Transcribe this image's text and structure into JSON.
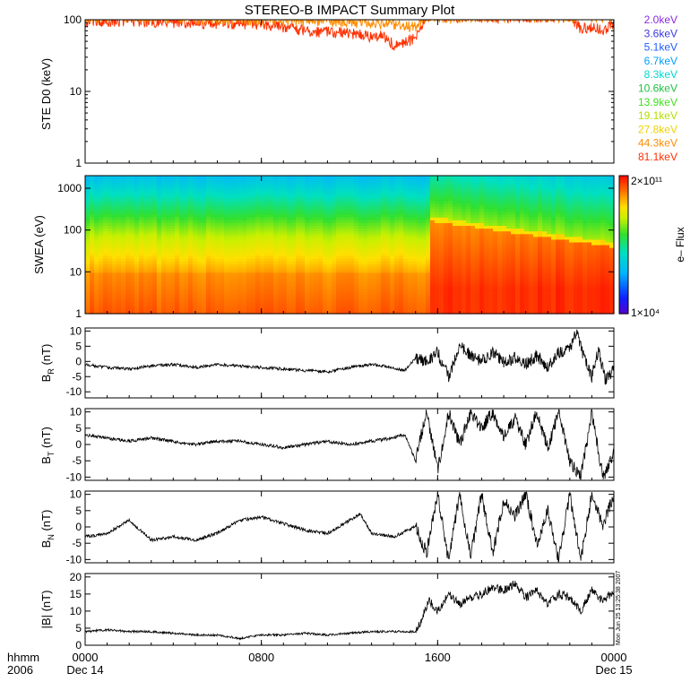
{
  "title": "STEREO-B IMPACT Summary Plot",
  "footer": {
    "label_line1": "hhmm",
    "label_line2": "2006",
    "x_ticks": [
      {
        "t": 0,
        "line1": "0000",
        "line2": "Dec 14"
      },
      {
        "t": 8,
        "line1": "0800",
        "line2": ""
      },
      {
        "t": 16,
        "line1": "1600",
        "line2": ""
      },
      {
        "t": 24,
        "line1": "0000",
        "line2": "Dec 15"
      }
    ],
    "timestamp": "Mon Jun 25 13:25:38 2007"
  },
  "colors": {
    "axis": "#000000",
    "legend": [
      "#8a2be2",
      "#3a3ae0",
      "#1f5cff",
      "#00a0ff",
      "#00d8d0",
      "#20c040",
      "#40e020",
      "#b0e000",
      "#f0d000",
      "#ff8c00",
      "#ff3000"
    ]
  },
  "chart_data": [
    {
      "id": "ste",
      "type": "line",
      "ylabel": "STE D0 (keV)",
      "yscale": "log",
      "ylim": [
        1,
        100
      ],
      "yticks": [
        1,
        10,
        100
      ],
      "ytick_labels": [
        "1",
        "10",
        "100"
      ],
      "xlim_hours": [
        0,
        24
      ],
      "legend": [
        "2.0keV",
        "3.6keV",
        "5.1keV",
        "6.7keV",
        "8.3keV",
        "10.6keV",
        "13.9keV",
        "19.1keV",
        "27.8keV",
        "44.3keV",
        "81.1keV"
      ],
      "series": [
        {
          "name": "81.1keV",
          "x": [
            0,
            2,
            4,
            6,
            8,
            9,
            10,
            11,
            12,
            12.5,
            13,
            13.5,
            14,
            14.5,
            14.9,
            15.2,
            15.5,
            16,
            20,
            22,
            22.5,
            23,
            23.5,
            24
          ],
          "y": [
            95,
            98,
            93,
            90,
            88,
            80,
            70,
            68,
            66,
            62,
            58,
            60,
            45,
            48,
            55,
            70,
            110,
            110,
            110,
            110,
            75,
            80,
            72,
            90
          ]
        },
        {
          "name": "44.3keV",
          "x": [
            0,
            4,
            8,
            11,
            13,
            14,
            15,
            15.2,
            15.5,
            24
          ],
          "y": [
            110,
            105,
            100,
            98,
            90,
            85,
            80,
            95,
            110,
            110
          ]
        }
      ]
    },
    {
      "id": "swea",
      "type": "heatmap",
      "ylabel": "SWEA (eV)",
      "yscale": "log",
      "ylim": [
        1,
        2000
      ],
      "yticks": [
        1,
        10,
        100,
        1000
      ],
      "ytick_labels": [
        "1",
        "10",
        "100",
        "1000"
      ],
      "xlim_hours": [
        0,
        24
      ],
      "colorbar": {
        "label": "e– Flux",
        "max_label": "2×10¹¹",
        "min_label": "1×10⁴",
        "min": 10000,
        "max": 200000000000,
        "scale": "log"
      },
      "features": [
        {
          "region": "before",
          "x": [
            0,
            15.6
          ],
          "peak_energy_ev": [
            40,
            40
          ],
          "profile": "broad warm band centred near 30-50 eV, green above 100 eV, cyan near 1000 eV"
        },
        {
          "region": "after",
          "x": [
            15.6,
            24
          ],
          "peak_energy_ev": [
            190,
            45
          ],
          "profile": "sharp yellow edge decreasing from ~190 eV to ~45 eV, red/orange below"
        }
      ]
    },
    {
      "id": "br",
      "type": "line",
      "ylabel": "B_R (nT)",
      "ylim": [
        -12,
        11
      ],
      "yticks": [
        -10,
        -5,
        0,
        5,
        10
      ],
      "ytick_labels": [
        "-10",
        "-5",
        "0",
        "5",
        "10"
      ],
      "xlim_hours": [
        0,
        24
      ],
      "series": [
        {
          "name": "B_R",
          "x": [
            0,
            1,
            2,
            3,
            4,
            5,
            6,
            7,
            8,
            9,
            10,
            11,
            12,
            13,
            14,
            14.5,
            15,
            15.5,
            16,
            16.5,
            17,
            17.5,
            18,
            18.5,
            19,
            19.5,
            20,
            20.5,
            21,
            21.5,
            22,
            22.3,
            22.7,
            23,
            23.3,
            23.6,
            24
          ],
          "y": [
            -1,
            -2,
            -2.5,
            -1.5,
            -1,
            -2,
            -1,
            -1.5,
            -2,
            -2.5,
            -3,
            -3.5,
            -2,
            -1,
            -2,
            -3,
            1,
            0,
            3,
            -5,
            5,
            2,
            0,
            3,
            0,
            1,
            -1,
            2,
            -2,
            3,
            4,
            10,
            0,
            -5,
            4,
            -6,
            -3
          ]
        }
      ]
    },
    {
      "id": "bt",
      "type": "line",
      "ylabel": "B_T (nT)",
      "ylim": [
        -11,
        11
      ],
      "yticks": [
        -10,
        -5,
        0,
        5,
        10
      ],
      "ytick_labels": [
        "-10",
        "-5",
        "0",
        "5",
        "10"
      ],
      "xlim_hours": [
        0,
        24
      ],
      "series": [
        {
          "name": "B_T",
          "x": [
            0,
            1,
            2,
            3,
            4,
            5,
            6,
            7,
            8,
            9,
            10,
            11,
            12,
            13,
            14,
            14.5,
            15,
            15.5,
            16,
            16.5,
            17,
            17.5,
            18,
            18.5,
            19,
            19.5,
            20,
            20.5,
            21,
            21.5,
            22,
            22.5,
            23,
            23.5,
            24
          ],
          "y": [
            3,
            2,
            1,
            2,
            1,
            0,
            1,
            1,
            0,
            -1,
            0,
            1,
            0,
            1,
            2,
            3,
            -5,
            10,
            -8,
            10,
            0,
            10,
            5,
            10,
            2,
            8,
            0,
            10,
            -1,
            10,
            -5,
            -10,
            10,
            -10,
            -3
          ]
        }
      ]
    },
    {
      "id": "bn",
      "type": "line",
      "ylabel": "B_N (nT)",
      "ylim": [
        -11,
        11
      ],
      "yticks": [
        -10,
        -5,
        0,
        5,
        10
      ],
      "ytick_labels": [
        "-10",
        "-5",
        "0",
        "5",
        "10"
      ],
      "xlim_hours": [
        0,
        24
      ],
      "series": [
        {
          "name": "B_N",
          "x": [
            0,
            1,
            2,
            3,
            4,
            5,
            6,
            7,
            8,
            9,
            10,
            11,
            12,
            12.5,
            13,
            14,
            15,
            15.5,
            16,
            16.5,
            17,
            17.5,
            18,
            18.5,
            19,
            19.5,
            20,
            20.5,
            21,
            21.5,
            22,
            22.5,
            23,
            23.5,
            24
          ],
          "y": [
            -3,
            -2,
            2,
            -4,
            -3,
            -4,
            -2,
            2,
            3,
            1,
            -1,
            -2,
            2,
            4,
            -2,
            -3,
            0,
            -8,
            10,
            -10,
            10,
            -9,
            10,
            -8,
            8,
            3,
            10,
            -5,
            5,
            -10,
            10,
            -10,
            10,
            0,
            10
          ]
        }
      ]
    },
    {
      "id": "bmag",
      "type": "line",
      "ylabel": "|B| (nT)",
      "ylim": [
        0,
        21
      ],
      "yticks": [
        0,
        5,
        10,
        15,
        20
      ],
      "ytick_labels": [
        "0",
        "5",
        "10",
        "15",
        "20"
      ],
      "xlim_hours": [
        0,
        24
      ],
      "series": [
        {
          "name": "|B|",
          "x": [
            0,
            1,
            2,
            3,
            4,
            5,
            6,
            7,
            8,
            9,
            10,
            11,
            12,
            13,
            14,
            15,
            15.3,
            15.6,
            16,
            16.5,
            17,
            17.5,
            18,
            18.5,
            19,
            19.5,
            20,
            20.5,
            21,
            21.5,
            22,
            22.5,
            23,
            23.5,
            24
          ],
          "y": [
            4,
            4.5,
            4,
            4,
            3.5,
            3,
            3,
            2,
            3,
            3,
            3.5,
            3,
            3.5,
            4,
            4,
            4,
            8,
            13,
            10,
            15,
            12,
            14,
            15,
            17,
            16,
            18,
            14,
            16,
            12,
            15,
            14,
            10,
            16,
            13,
            16
          ]
        }
      ]
    }
  ]
}
